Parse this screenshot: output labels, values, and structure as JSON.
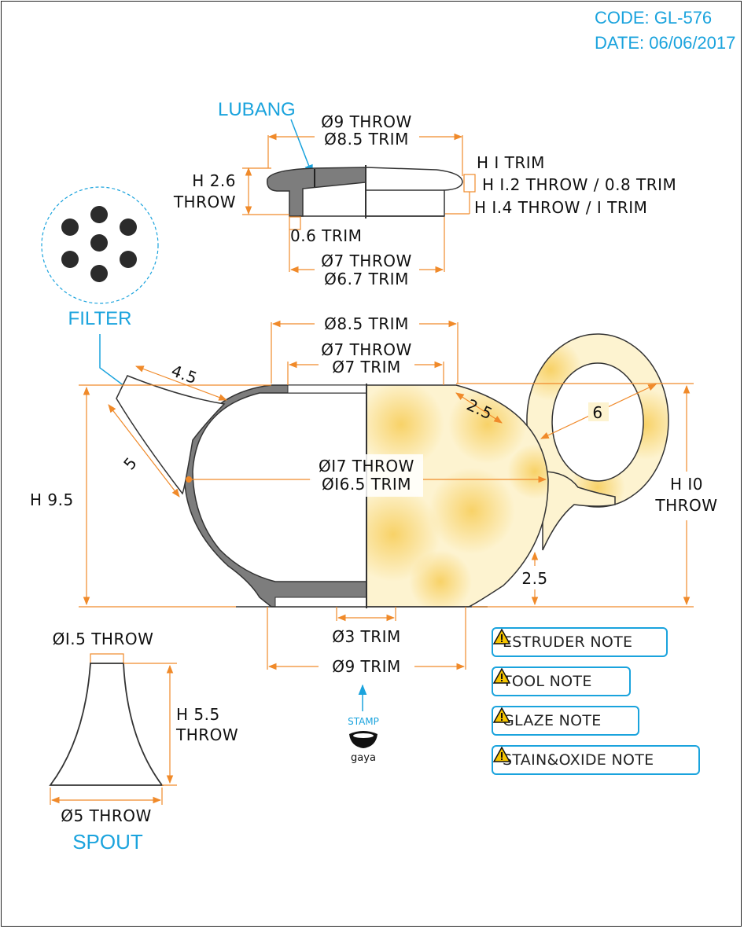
{
  "header": {
    "code": "CODE: GL-576",
    "date": "DATE: 06/06/2017"
  },
  "colors": {
    "accent": "#1aa3dd",
    "dimension": "#f08a2a",
    "clay": "#7d7d7d",
    "glaze_light": "#fdf3d0",
    "glaze_dark": "#f8d26a"
  },
  "lid": {
    "label_lubang": "LUBANG",
    "d_top_throw": "Ø9 THROW",
    "d_top_trim": "Ø8.5 TRIM",
    "h_left_1": "H 2.6",
    "h_left_2": "THROW",
    "h_trim": "H I TRIM",
    "h_rim": "H I.2 THROW / 0.8 TRIM",
    "h_flange": "H I.4 THROW / I TRIM",
    "flange_trim": "0.6 TRIM",
    "d_bottom_throw": "Ø7 THROW",
    "d_bottom_trim": "Ø6.7 TRIM"
  },
  "filter": {
    "label": "FILTER"
  },
  "body": {
    "d_top_trim": "Ø8.5 TRIM",
    "d_opening_throw": "Ø7 THROW",
    "d_opening_trim": "Ø7 TRIM",
    "spout_len": "4.5",
    "spout_side": "5",
    "h_left": "H 9.5",
    "d_mid_throw": "ØI7 THROW",
    "d_mid_trim": "ØI6.5 TRIM",
    "shoulder": "2.5",
    "handle": "6",
    "h_right_1": "H I0",
    "h_right_2": "THROW",
    "foot": "2.5",
    "d_foot_trim": "Ø3 TRIM",
    "d_base_trim": "Ø9 TRIM"
  },
  "stamp": {
    "label": "STAMP",
    "brand": "gaya"
  },
  "spout": {
    "d_top": "ØI.5 THROW",
    "h_1": "H 5.5",
    "h_2": "THROW",
    "d_bottom": "Ø5 THROW",
    "label": "SPOUT"
  },
  "notes": [
    {
      "label": "ESTRUDER NOTE",
      "icon": "warning-icon"
    },
    {
      "label": "TOOL NOTE",
      "icon": "warning-icon"
    },
    {
      "label": "GLAZE NOTE",
      "icon": "warning-icon"
    },
    {
      "label": "STAIN&OXIDE NOTE",
      "icon": "warning-icon"
    }
  ]
}
